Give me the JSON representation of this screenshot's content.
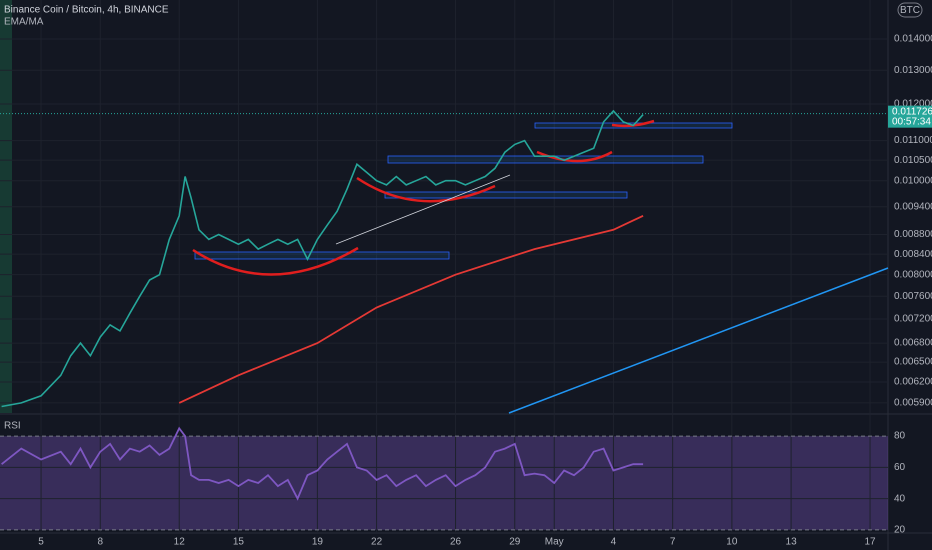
{
  "chart_data": [
    {
      "type": "line",
      "title": "Binance Coin / Bitcoin, 4h, BINANCE",
      "subtitle": "EMA/MA",
      "badge": "BTC",
      "log": true,
      "grid": true,
      "xlim": [
        2.92,
        47.91
      ],
      "ylim": [
        0.00576,
        0.01536
      ],
      "yticks": [
        {
          "value": 0.014,
          "label": "0.014000"
        },
        {
          "value": 0.013,
          "label": "0.013000"
        },
        {
          "value": 0.012,
          "label": "0.012000"
        },
        {
          "value": 0.011,
          "label": "0.011000"
        },
        {
          "value": 0.0105,
          "label": "0.010500"
        },
        {
          "value": 0.01,
          "label": "0.010000"
        },
        {
          "value": 0.0094,
          "label": "0.009400"
        },
        {
          "value": 0.0088,
          "label": "0.008800"
        },
        {
          "value": 0.0084,
          "label": "0.008400"
        },
        {
          "value": 0.008,
          "label": "0.008000"
        },
        {
          "value": 0.0076,
          "label": "0.007600"
        },
        {
          "value": 0.0072,
          "label": "0.007200"
        },
        {
          "value": 0.0068,
          "label": "0.006800"
        },
        {
          "value": 0.0065,
          "label": "0.006500"
        },
        {
          "value": 0.0062,
          "label": "0.006200"
        },
        {
          "value": 0.0059,
          "label": "0.005900"
        }
      ],
      "last_price": 0.011726,
      "countdown": "00:57:34",
      "series": [
        {
          "color": "#26a69a",
          "x": [
            3,
            4,
            5,
            6,
            6.5,
            7,
            7.5,
            8,
            8.5,
            9,
            9.5,
            10,
            10.5,
            11,
            11.5,
            12,
            12.3,
            12.6,
            13,
            13.5,
            14,
            14.5,
            15,
            15.5,
            16,
            16.5,
            17,
            17.5,
            18,
            18.5,
            19,
            19.5,
            20,
            20.5,
            21,
            21.5,
            22,
            22.5,
            23,
            23.5,
            24,
            24.5,
            25,
            25.5,
            26,
            26.5,
            27,
            27.5,
            28,
            28.5,
            29,
            29.5,
            30,
            30.5,
            31,
            31.5,
            32,
            32.5,
            33,
            33.5,
            34,
            34.5,
            35,
            35.5
          ],
          "values": [
            0.00585,
            0.0059,
            0.006,
            0.0063,
            0.0066,
            0.0068,
            0.0066,
            0.0069,
            0.0071,
            0.007,
            0.0073,
            0.0076,
            0.0079,
            0.008,
            0.0087,
            0.0092,
            0.0101,
            0.0096,
            0.0089,
            0.0087,
            0.0088,
            0.0087,
            0.0086,
            0.0087,
            0.0085,
            0.0086,
            0.0087,
            0.0086,
            0.0087,
            0.0083,
            0.0087,
            0.009,
            0.0093,
            0.0098,
            0.0104,
            0.0102,
            0.01,
            0.0099,
            0.0101,
            0.0099,
            0.01,
            0.0101,
            0.0099,
            0.01,
            0.01,
            0.0099,
            0.01,
            0.0101,
            0.0103,
            0.0107,
            0.0109,
            0.011,
            0.0106,
            0.0106,
            0.0106,
            0.0105,
            0.0106,
            0.0107,
            0.0108,
            0.0115,
            0.0118,
            0.0115,
            0.0114,
            0.0117
          ]
        },
        {
          "color": "#e53935",
          "x": [
            12,
            15,
            19,
            22,
            26,
            30,
            34,
            35.5
          ],
          "values": [
            0.0059,
            0.0063,
            0.0068,
            0.0074,
            0.008,
            0.0085,
            0.0089,
            0.0092
          ]
        }
      ]
    },
    {
      "type": "line",
      "title": "RSI",
      "grid": true,
      "xlim": [
        2.92,
        47.91
      ],
      "ylim": [
        18,
        93.5
      ],
      "yticks": [
        80,
        60,
        40,
        20
      ],
      "band": [
        20,
        80
      ],
      "xticks": [
        5,
        8,
        12,
        15,
        19,
        22,
        26,
        {
          "value": 29,
          "label": "29"
        },
        {
          "value": 31,
          "label": "May"
        },
        {
          "value": 34,
          "label": "4"
        },
        {
          "value": 37,
          "label": "7"
        },
        {
          "value": 40,
          "label": "10"
        },
        {
          "value": 43,
          "label": "13"
        },
        {
          "value": 47,
          "label": "17"
        }
      ],
      "series": [
        {
          "color": "#7e57c2",
          "x": [
            3,
            4,
            5,
            6,
            6.5,
            7,
            7.5,
            8,
            8.5,
            9,
            9.5,
            10,
            10.5,
            11,
            11.5,
            12,
            12.3,
            12.6,
            13,
            13.5,
            14,
            14.5,
            15,
            15.5,
            16,
            16.5,
            17,
            17.5,
            18,
            18.5,
            19,
            19.5,
            20,
            20.5,
            21,
            21.5,
            22,
            22.5,
            23,
            23.5,
            24,
            24.5,
            25,
            25.5,
            26,
            26.5,
            27,
            27.5,
            28,
            28.5,
            29,
            29.5,
            30,
            30.5,
            31,
            31.5,
            32,
            32.5,
            33,
            33.5,
            34,
            34.5,
            35,
            35.5
          ],
          "values": [
            62,
            72,
            65,
            70,
            62,
            72,
            60,
            70,
            75,
            65,
            72,
            70,
            74,
            68,
            72,
            85,
            80,
            55,
            52,
            52,
            50,
            52,
            48,
            52,
            50,
            55,
            48,
            52,
            40,
            55,
            58,
            65,
            70,
            75,
            60,
            58,
            52,
            55,
            48,
            52,
            55,
            48,
            52,
            55,
            48,
            52,
            55,
            60,
            70,
            72,
            75,
            55,
            56,
            55,
            50,
            58,
            55,
            60,
            70,
            72,
            58,
            60,
            62,
            62
          ]
        }
      ]
    }
  ]
}
